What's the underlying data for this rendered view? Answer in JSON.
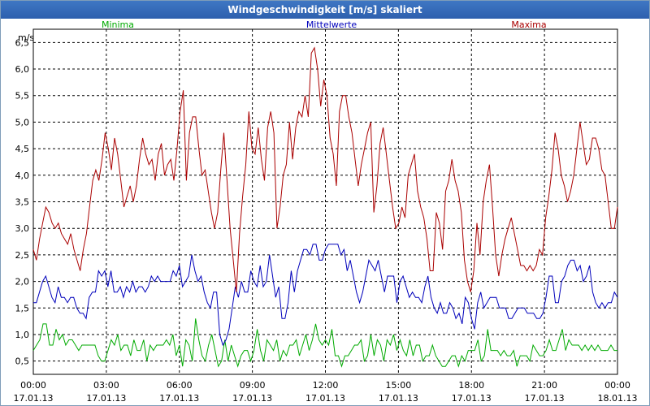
{
  "window": {
    "title": "Windgeschwindigkeit [m/s] skaliert"
  },
  "chart_data": {
    "type": "line",
    "title": "Windgeschwindigkeit [m/s] skaliert",
    "ylabel": "m/s",
    "xlabel": "",
    "ylim": [
      0.25,
      6.75
    ],
    "xlim_hours": [
      0,
      24
    ],
    "grid": true,
    "yticks": [
      "0,5",
      "1,0",
      "1,5",
      "2,0",
      "2,5",
      "3,0",
      "3,5",
      "4,0",
      "4,5",
      "5,0",
      "5,5",
      "6,0",
      "6,5"
    ],
    "ytick_values": [
      0.5,
      1.0,
      1.5,
      2.0,
      2.5,
      3.0,
      3.5,
      4.0,
      4.5,
      5.0,
      5.5,
      6.0,
      6.5
    ],
    "xticks": [
      {
        "time": "00:00",
        "date": "17.01.13"
      },
      {
        "time": "03:00",
        "date": "17.01.13"
      },
      {
        "time": "06:00",
        "date": "17.01.13"
      },
      {
        "time": "09:00",
        "date": "17.01.13"
      },
      {
        "time": "12:00",
        "date": "17.01.13"
      },
      {
        "time": "15:00",
        "date": "17.01.13"
      },
      {
        "time": "18:00",
        "date": "17.01.13"
      },
      {
        "time": "21:00",
        "date": "17.01.13"
      },
      {
        "time": "00:00",
        "date": "18.01.13"
      }
    ],
    "legend_placement": "top",
    "series": [
      {
        "name": "Minima",
        "color": "#00aa00",
        "values": [
          0.7,
          0.8,
          0.9,
          1.2,
          1.2,
          0.8,
          0.8,
          1.1,
          0.9,
          1.0,
          0.8,
          0.9,
          0.9,
          0.8,
          0.7,
          0.8,
          0.8,
          0.8,
          0.8,
          0.8,
          0.6,
          0.5,
          0.5,
          0.7,
          0.9,
          0.8,
          1.0,
          0.7,
          0.8,
          0.8,
          0.6,
          0.9,
          0.7,
          0.7,
          0.9,
          0.5,
          0.8,
          0.7,
          0.8,
          0.8,
          0.8,
          0.9,
          0.8,
          1.0,
          0.6,
          0.8,
          0.4,
          0.9,
          0.8,
          0.5,
          1.3,
          0.9,
          0.6,
          0.5,
          0.8,
          1.0,
          0.7,
          0.4,
          0.5,
          0.9,
          0.5,
          0.8,
          0.6,
          0.4,
          0.6,
          0.7,
          0.7,
          0.5,
          0.7,
          1.1,
          0.7,
          0.5,
          0.9,
          0.8,
          0.7,
          0.9,
          0.5,
          0.7,
          0.6,
          0.8,
          0.8,
          0.9,
          0.6,
          0.8,
          1.0,
          0.7,
          0.9,
          1.2,
          0.9,
          0.8,
          0.9,
          0.8,
          1.1,
          0.6,
          0.6,
          0.4,
          0.6,
          0.6,
          0.7,
          0.8,
          0.8,
          0.9,
          0.5,
          0.6,
          1.0,
          0.6,
          0.9,
          0.8,
          0.5,
          0.9,
          0.8,
          1.0,
          0.7,
          0.9,
          0.7,
          0.6,
          0.9,
          0.6,
          0.8,
          0.8,
          0.5,
          0.6,
          0.6,
          0.8,
          0.6,
          0.5,
          0.4,
          0.4,
          0.5,
          0.6,
          0.6,
          0.4,
          0.6,
          0.5,
          0.7,
          0.7,
          0.7,
          0.9,
          0.5,
          0.6,
          1.1,
          0.7,
          0.7,
          0.7,
          0.6,
          0.7,
          0.6,
          0.6,
          0.7,
          0.4,
          0.6,
          0.6,
          0.6,
          0.5,
          0.8,
          0.7,
          0.6,
          0.6,
          0.7,
          0.9,
          0.7,
          0.7,
          0.9,
          1.1,
          0.7,
          0.9,
          0.8,
          0.8,
          0.8,
          0.7,
          0.8,
          0.7,
          0.8,
          0.7,
          0.8,
          0.7,
          0.7,
          0.7,
          0.8,
          0.7,
          0.7
        ]
      },
      {
        "name": "Mittelwerte",
        "color": "#0000bb",
        "values": [
          1.6,
          1.6,
          1.8,
          2.0,
          2.1,
          1.9,
          1.7,
          1.6,
          1.9,
          1.7,
          1.7,
          1.6,
          1.7,
          1.7,
          1.5,
          1.4,
          1.4,
          1.3,
          1.7,
          1.8,
          1.8,
          2.2,
          2.1,
          2.2,
          1.9,
          2.2,
          1.8,
          1.8,
          1.9,
          1.7,
          1.9,
          1.8,
          2.0,
          1.8,
          1.9,
          1.9,
          1.8,
          1.9,
          2.1,
          2.0,
          2.1,
          2.0,
          2.0,
          2.0,
          2.0,
          2.2,
          2.1,
          2.3,
          1.9,
          2.0,
          2.1,
          2.5,
          2.2,
          2.0,
          2.1,
          1.8,
          1.6,
          1.5,
          1.8,
          1.8,
          1.0,
          0.8,
          0.9,
          1.1,
          1.5,
          1.9,
          1.7,
          2.0,
          1.8,
          1.8,
          2.2,
          2.0,
          1.9,
          2.3,
          1.9,
          2.0,
          2.5,
          2.1,
          1.7,
          1.9,
          1.3,
          1.3,
          1.6,
          2.2,
          1.8,
          2.2,
          2.4,
          2.6,
          2.6,
          2.5,
          2.7,
          2.7,
          2.4,
          2.4,
          2.6,
          2.7,
          2.7,
          2.7,
          2.7,
          2.5,
          2.6,
          2.2,
          2.4,
          2.1,
          1.8,
          1.6,
          1.8,
          2.1,
          2.4,
          2.3,
          2.2,
          2.4,
          2.1,
          1.8,
          2.1,
          2.1,
          2.1,
          1.6,
          2.0,
          2.1,
          1.9,
          1.7,
          1.8,
          1.7,
          1.7,
          1.6,
          1.9,
          2.1,
          1.7,
          1.5,
          1.4,
          1.6,
          1.4,
          1.4,
          1.6,
          1.5,
          1.3,
          1.4,
          1.2,
          1.7,
          1.6,
          1.3,
          1.1,
          1.6,
          1.8,
          1.5,
          1.6,
          1.7,
          1.7,
          1.7,
          1.5,
          1.5,
          1.5,
          1.3,
          1.3,
          1.4,
          1.5,
          1.5,
          1.5,
          1.4,
          1.4,
          1.4,
          1.3,
          1.3,
          1.4,
          1.7,
          2.1,
          2.1,
          1.6,
          1.6,
          2.0,
          2.1,
          2.3,
          2.4,
          2.4,
          2.2,
          2.3,
          2.0,
          2.1,
          2.3,
          1.8,
          1.6,
          1.5,
          1.6,
          1.5,
          1.6,
          1.6,
          1.8,
          1.7
        ]
      },
      {
        "name": "Maxima",
        "color": "#aa0000",
        "values": [
          2.6,
          2.4,
          2.8,
          3.1,
          3.4,
          3.3,
          3.1,
          3.0,
          3.1,
          2.9,
          2.8,
          2.7,
          2.9,
          2.6,
          2.4,
          2.2,
          2.6,
          2.9,
          3.4,
          3.9,
          4.1,
          3.9,
          4.3,
          4.8,
          4.5,
          4.1,
          4.7,
          4.4,
          3.9,
          3.4,
          3.6,
          3.8,
          3.5,
          3.8,
          4.3,
          4.7,
          4.4,
          4.2,
          4.3,
          3.9,
          4.4,
          4.6,
          4.0,
          4.2,
          4.3,
          3.9,
          4.5,
          5.2,
          5.6,
          3.9,
          4.8,
          5.1,
          5.1,
          4.5,
          4.0,
          4.1,
          3.7,
          3.3,
          3.0,
          3.3,
          4.1,
          4.8,
          3.9,
          3.0,
          2.4,
          1.8,
          2.9,
          3.6,
          4.2,
          5.2,
          4.5,
          4.4,
          4.9,
          4.3,
          3.9,
          4.9,
          5.2,
          4.8,
          3.0,
          3.4,
          4.0,
          4.2,
          5.0,
          4.3,
          4.9,
          5.2,
          5.1,
          5.5,
          5.1,
          6.3,
          6.4,
          6.0,
          5.3,
          5.8,
          5.5,
          4.7,
          4.4,
          3.8,
          5.2,
          5.5,
          5.5,
          5.1,
          4.8,
          4.3,
          3.8,
          4.2,
          4.5,
          4.8,
          5.0,
          3.3,
          3.8,
          4.6,
          4.9,
          4.4,
          3.9,
          3.4,
          3.0,
          3.1,
          3.4,
          3.2,
          4.0,
          4.2,
          4.4,
          3.7,
          3.4,
          3.2,
          2.8,
          2.2,
          2.2,
          3.3,
          3.1,
          2.6,
          3.7,
          3.9,
          4.3,
          3.9,
          3.7,
          3.3,
          2.4,
          2.0,
          1.8,
          2.2,
          3.1,
          2.5,
          3.5,
          3.9,
          4.2,
          3.4,
          2.5,
          2.1,
          2.5,
          2.8,
          3.0,
          3.2,
          2.9,
          2.6,
          2.3,
          2.3,
          2.2,
          2.3,
          2.2,
          2.3,
          2.6,
          2.5,
          3.2,
          3.6,
          4.1,
          4.8,
          4.5,
          4.0,
          3.8,
          3.5,
          3.7,
          4.0,
          4.5,
          5.0,
          4.6,
          4.2,
          4.3,
          4.7,
          4.7,
          4.5,
          4.1,
          4.0,
          3.5,
          3.0,
          3.0,
          3.4
        ]
      }
    ]
  }
}
